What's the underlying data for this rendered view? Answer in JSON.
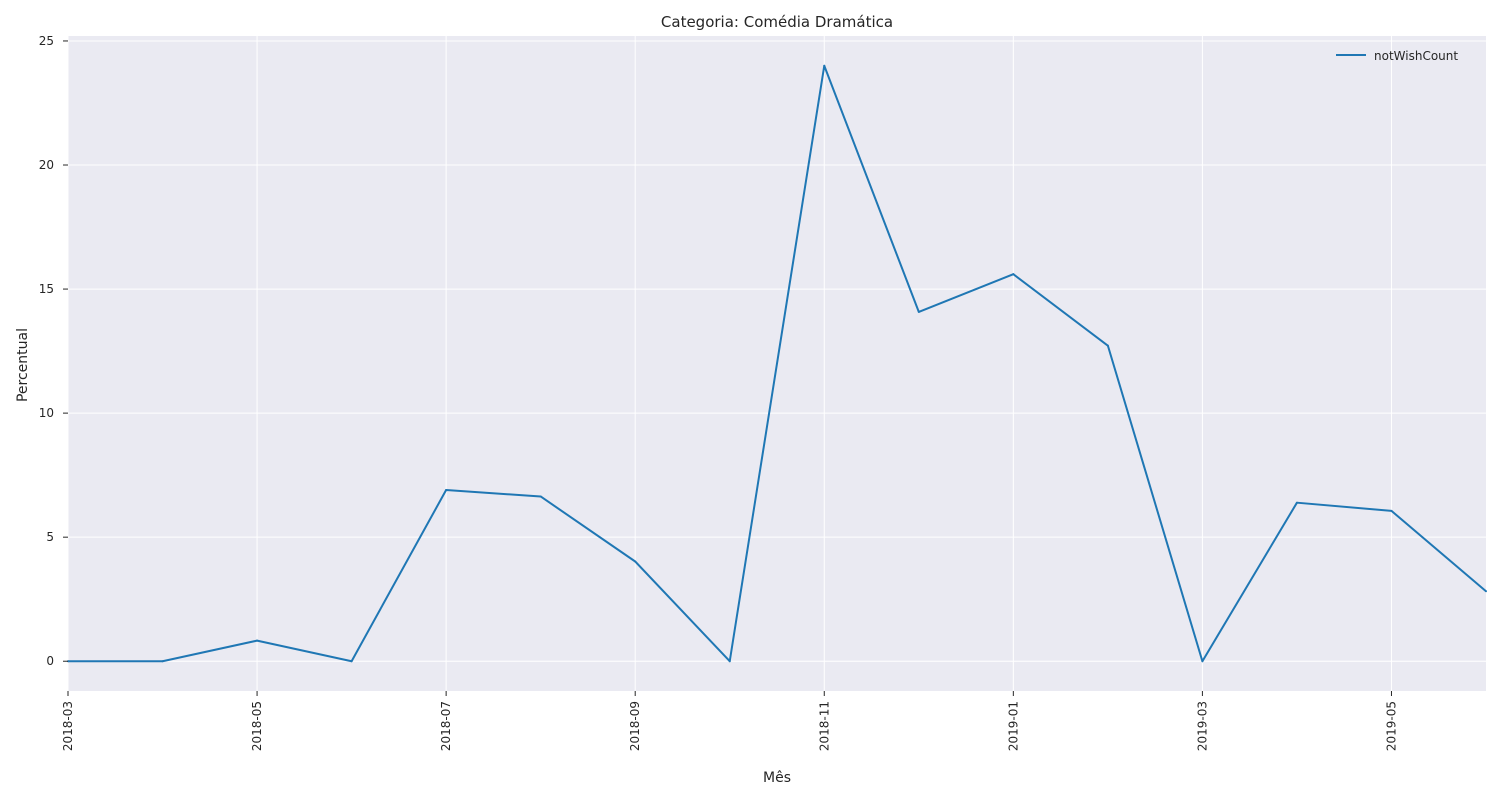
{
  "chart_data": {
    "type": "line",
    "title": "Categoria: Comédia Dramática",
    "xlabel": "Mês",
    "ylabel": "Percentual",
    "x": [
      "2018-03",
      "2018-04",
      "2018-05",
      "2018-06",
      "2018-07",
      "2018-08",
      "2018-09",
      "2018-10",
      "2018-11",
      "2018-12",
      "2019-01",
      "2019-02",
      "2019-03",
      "2019-04",
      "2019-05",
      "2019-06"
    ],
    "series": [
      {
        "name": "notWishCount",
        "values": [
          0,
          0,
          0.83,
          0,
          6.9,
          6.64,
          4.02,
          0,
          24.0,
          14.08,
          15.6,
          12.72,
          0,
          6.39,
          6.06,
          2.82
        ],
        "color": "#1f77b4"
      }
    ],
    "xticks": [
      "2018-03",
      "2018-05",
      "2018-07",
      "2018-09",
      "2018-11",
      "2019-01",
      "2019-03",
      "2019-05"
    ],
    "yticks": [
      0,
      5,
      10,
      15,
      20,
      25
    ],
    "xlim": [
      "2018-03",
      "2019-06"
    ],
    "ylim": [
      -1.2,
      25.2
    ],
    "grid": true,
    "background": "#eaeaf2",
    "gridColor": "#ffffff",
    "legend": "top-right"
  }
}
